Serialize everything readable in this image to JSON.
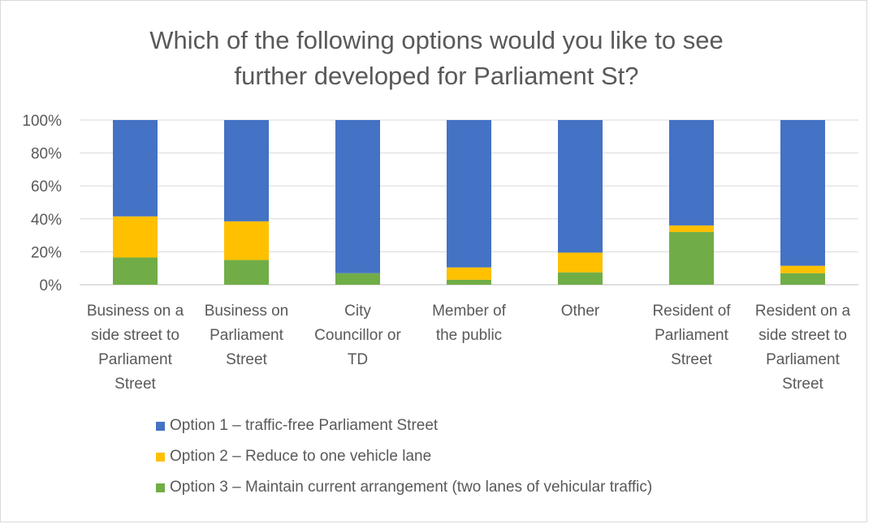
{
  "chart_data": {
    "type": "bar",
    "stacked": true,
    "percent_stacked": true,
    "title": "Which of the following options would you like to see further developed for Parliament St?",
    "title_lines": [
      "Which of the following options would you like to see",
      "further developed for Parliament St?"
    ],
    "categories": [
      "Business on a side street to Parliament Street",
      "Business on Parliament Street",
      "City Councillor or TD",
      "Member of the public",
      "Other",
      "Resident of Parliament Street",
      "Resident on a side street to Parliament Street"
    ],
    "category_lines": [
      [
        "Business on a",
        "side street to",
        "Parliament",
        "Street"
      ],
      [
        "Business on",
        "Parliament",
        "Street"
      ],
      [
        "City",
        "Councillor or",
        "TD"
      ],
      [
        "Member of",
        "the public"
      ],
      [
        "Other"
      ],
      [
        "Resident of",
        "Parliament",
        "Street"
      ],
      [
        "Resident on a",
        "side street to",
        "Parliament",
        "Street"
      ]
    ],
    "series": [
      {
        "name": "Option 3 – Maintain current arrangement (two lanes of vehicular traffic)",
        "color": "#70ad47",
        "values": [
          16.5,
          15,
          7,
          3,
          7.5,
          32,
          7
        ]
      },
      {
        "name": "Option 2 – Reduce to one vehicle lane",
        "color": "#ffc000",
        "values": [
          25,
          23.5,
          0,
          7.5,
          12,
          4,
          4.5
        ]
      },
      {
        "name": "Option 1 – traffic-free Parliament Street",
        "color": "#4472c4",
        "values": [
          58.5,
          61.5,
          93,
          89.5,
          80.5,
          64,
          88.5
        ]
      }
    ],
    "legend_order": [
      2,
      1,
      0
    ],
    "y_ticks": [
      "0%",
      "20%",
      "40%",
      "60%",
      "80%",
      "100%"
    ],
    "ylim": [
      0,
      100
    ],
    "grid": true,
    "legend_position": "bottom"
  }
}
